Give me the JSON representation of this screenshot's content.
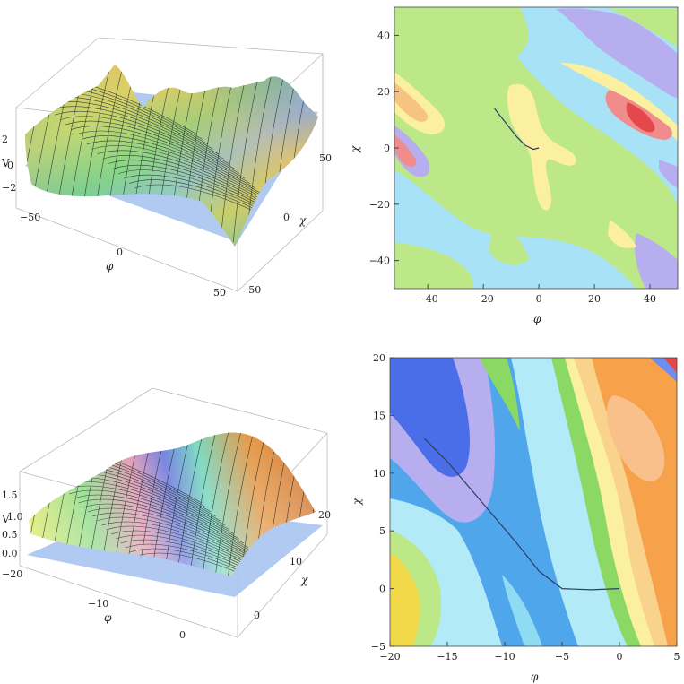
{
  "chart_data": [
    {
      "type": "surface3d",
      "xlabel": "φ",
      "ylabel": "χ",
      "zlabel": "V",
      "x_ticks": [
        "−50",
        "0",
        "50"
      ],
      "y_ticks": [
        "−50",
        "0",
        "50"
      ],
      "z_ticks": [
        "2",
        "0",
        "−2"
      ],
      "xlim": [
        -50,
        50
      ],
      "ylim": [
        -50,
        50
      ],
      "zlim": [
        -3,
        3
      ]
    },
    {
      "type": "contour",
      "xlabel": "φ",
      "ylabel": "χ",
      "x_ticks": [
        -40,
        -20,
        0,
        20,
        40
      ],
      "y_ticks": [
        -40,
        -20,
        0,
        20,
        40
      ],
      "xlim": [
        -52,
        50
      ],
      "ylim": [
        -50,
        50
      ],
      "path": [
        [
          -16,
          14
        ],
        [
          -12,
          9
        ],
        [
          -8,
          4
        ],
        [
          -5,
          1
        ],
        [
          -2,
          -0.5
        ],
        [
          0,
          0
        ]
      ]
    },
    {
      "type": "surface3d",
      "xlabel": "φ",
      "ylabel": "χ",
      "zlabel": "V",
      "x_ticks": [
        "−20",
        "−10",
        "0"
      ],
      "y_ticks": [
        "0",
        "10",
        "20"
      ],
      "z_ticks": [
        "1.5",
        "1.0",
        "0.5",
        "0.0"
      ],
      "xlim": [
        -20,
        5
      ],
      "ylim": [
        -5,
        20
      ],
      "zlim": [
        0,
        1.6
      ]
    },
    {
      "type": "contour",
      "xlabel": "φ",
      "ylabel": "χ",
      "x_ticks": [
        -20,
        -15,
        -10,
        -5,
        0,
        5
      ],
      "y_ticks": [
        -5,
        0,
        5,
        10,
        15,
        20
      ],
      "xlim": [
        -20,
        5
      ],
      "ylim": [
        -5,
        20
      ],
      "path": [
        [
          -17,
          13
        ],
        [
          -15,
          11
        ],
        [
          -12,
          7.5
        ],
        [
          -9,
          4
        ],
        [
          -7,
          1.5
        ],
        [
          -5,
          0
        ],
        [
          -2.5,
          -0.1
        ],
        [
          0,
          0
        ]
      ]
    }
  ],
  "colors": {
    "contour_levels": [
      "#8fdcf2",
      "#b3eaf8",
      "#bde888",
      "#fbf0a0",
      "#f6c480",
      "#f08c8c",
      "#e4484a",
      "#b7aef0",
      "#6f8cf0",
      "#4a6ee8",
      "#f7a24a",
      "#f9d28c",
      "#f0d848",
      "#8cd864"
    ],
    "path_line": "#2c3e66",
    "floor_plane": "#a9c4f0"
  }
}
